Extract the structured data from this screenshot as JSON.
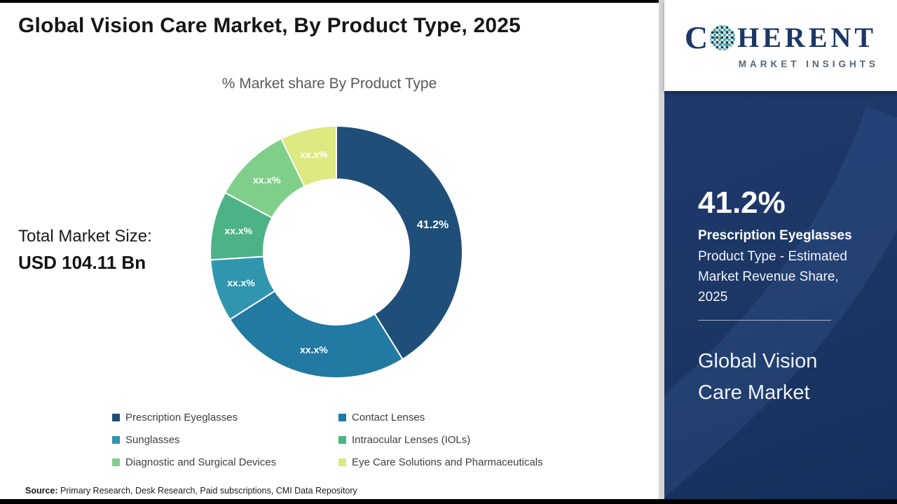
{
  "page": {
    "title": "Global Vision Care Market, By Product Type, 2025",
    "source_label": "Source:",
    "source_text": " Primary Research, Desk Research, Paid subscriptions, CMI Data Repository"
  },
  "total_market": {
    "label": "Total Market Size:",
    "value": "USD 104.11 Bn"
  },
  "chart_data": {
    "type": "pie",
    "variant": "donut",
    "title": "% Market share By Product Type",
    "start_angle_deg": 0,
    "legend_position": "bottom",
    "categories": [
      "Prescription Eyeglasses",
      "Contact Lenses",
      "Sunglasses",
      "Intraocular Lenses (IOLs)",
      "Diagnostic and Surgical Devices",
      "Eye Care Solutions and Pharmaceuticals"
    ],
    "values": [
      41.2,
      24.8,
      8.0,
      8.8,
      10.0,
      7.2
    ],
    "slice_labels": [
      "41.2%",
      "xx.x%",
      "xx.x%",
      "xx.x%",
      "xx.x%",
      "xx.x%"
    ],
    "colors": [
      "#1f4e79",
      "#2279a2",
      "#2f96ad",
      "#4db386",
      "#7fcf8a",
      "#dde981"
    ]
  },
  "sidebar": {
    "logo_c": "C",
    "logo_rest": "HERENT",
    "logo_sub": "MARKET INSIGHTS",
    "stat_value": "41.2%",
    "stat_label": "Prescription Eyeglasses",
    "stat_desc": "Product Type - Estimated Market Revenue Share, 2025",
    "market_name": "Global Vision Care Market"
  }
}
